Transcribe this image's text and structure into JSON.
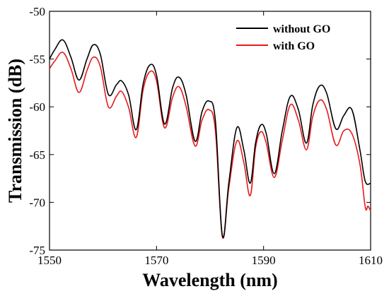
{
  "chart_data": {
    "type": "line",
    "title": "",
    "xlabel": "Wavelength (nm)",
    "ylabel": "Transmission (dB)",
    "xlim": [
      1550,
      1610
    ],
    "ylim": [
      -75,
      -50
    ],
    "xticks": [
      1550,
      1570,
      1590,
      1610
    ],
    "yticks": [
      -50,
      -55,
      -60,
      -65,
      -70,
      -75
    ],
    "xtick_labels": [
      "1550",
      "1570",
      "1590",
      "1610"
    ],
    "ytick_labels": [
      "-50",
      "-55",
      "-60",
      "-65",
      "-70",
      "-75"
    ],
    "grid": false,
    "legend_position": "top-right",
    "series": [
      {
        "name": "without GO",
        "color": "#000000",
        "x": [
          1550.0,
          1551.0,
          1552.5,
          1554.0,
          1555.5,
          1557.0,
          1558.2,
          1559.5,
          1561.0,
          1562.5,
          1563.5,
          1564.8,
          1566.2,
          1567.5,
          1568.8,
          1570.0,
          1571.5,
          1573.0,
          1574.2,
          1575.5,
          1577.2,
          1578.5,
          1579.8,
          1581.0,
          1582.3,
          1583.5,
          1585.0,
          1586.3,
          1587.5,
          1588.5,
          1589.5,
          1590.5,
          1592.0,
          1593.5,
          1595.0,
          1596.5,
          1598.0,
          1599.2,
          1600.5,
          1601.8,
          1603.5,
          1605.0,
          1606.5,
          1608.0,
          1609.0,
          1610.0
        ],
        "values": [
          -55.0,
          -54.0,
          -53.0,
          -54.8,
          -57.2,
          -55.0,
          -53.5,
          -54.5,
          -58.7,
          -57.7,
          -57.3,
          -58.8,
          -62.4,
          -57.6,
          -55.6,
          -56.7,
          -61.8,
          -58.0,
          -56.9,
          -58.7,
          -63.6,
          -60.5,
          -59.4,
          -61.5,
          -73.5,
          -68.0,
          -62.2,
          -64.5,
          -68.0,
          -63.8,
          -61.9,
          -62.8,
          -67.0,
          -62.5,
          -58.9,
          -60.3,
          -63.8,
          -59.8,
          -57.8,
          -58.6,
          -62.3,
          -60.9,
          -60.3,
          -64.5,
          -67.8,
          -68.0
        ]
      },
      {
        "name": "with GO",
        "color": "#e8191b",
        "x": [
          1550.0,
          1551.0,
          1552.5,
          1554.0,
          1555.5,
          1557.0,
          1558.2,
          1559.5,
          1561.0,
          1562.5,
          1563.5,
          1564.8,
          1566.2,
          1567.5,
          1568.8,
          1570.0,
          1571.5,
          1573.0,
          1574.2,
          1575.5,
          1577.2,
          1578.5,
          1579.8,
          1581.0,
          1582.3,
          1583.5,
          1585.0,
          1586.3,
          1587.5,
          1588.5,
          1589.5,
          1590.5,
          1592.0,
          1593.5,
          1595.0,
          1596.5,
          1598.0,
          1599.2,
          1600.5,
          1601.8,
          1603.5,
          1605.0,
          1606.5,
          1608.0,
          1609.0,
          1609.5,
          1610.0
        ],
        "values": [
          -56.0,
          -55.2,
          -54.3,
          -56.0,
          -58.5,
          -56.2,
          -54.8,
          -55.8,
          -60.0,
          -58.9,
          -58.4,
          -60.1,
          -63.2,
          -58.2,
          -56.3,
          -57.3,
          -62.2,
          -59.0,
          -57.9,
          -59.9,
          -64.1,
          -61.4,
          -60.3,
          -62.5,
          -73.6,
          -68.5,
          -63.6,
          -65.8,
          -69.3,
          -64.3,
          -62.6,
          -63.8,
          -67.4,
          -63.5,
          -59.8,
          -61.4,
          -64.5,
          -61.0,
          -59.3,
          -60.3,
          -64.0,
          -62.5,
          -62.8,
          -66.0,
          -70.5,
          -70.4,
          -70.9
        ]
      }
    ]
  }
}
